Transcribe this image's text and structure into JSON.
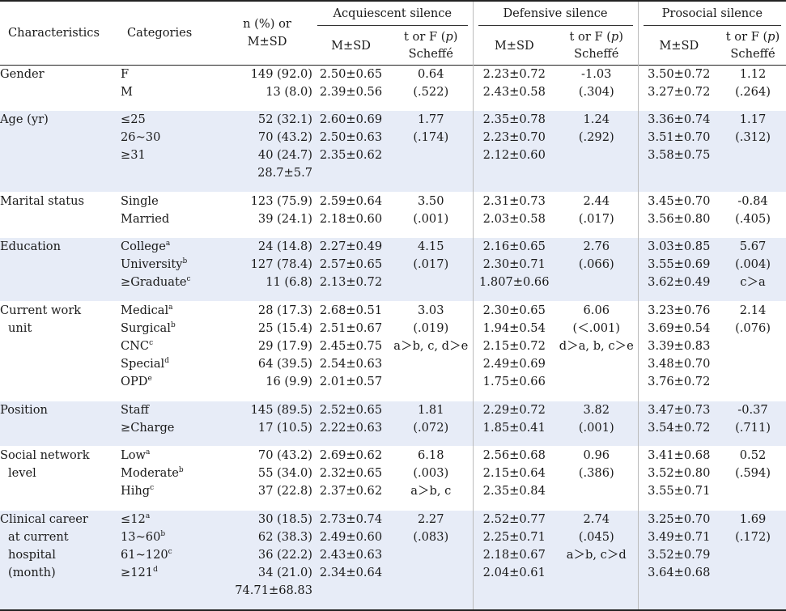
{
  "header": {
    "characteristics": "Characteristics",
    "categories": "Categories",
    "n_line1": "n (%) or",
    "n_line2": "M±SD",
    "groups": [
      "Acquiescent silence",
      "Defensive silence",
      "Prosocial silence"
    ],
    "msd": "M±SD",
    "stat_line1": "t or F (",
    "stat_p": "p",
    "stat_close": ")",
    "stat_line2": "Scheffé"
  },
  "rows": [
    {
      "characteristic": [
        "Gender"
      ],
      "categories": [
        {
          "text": "F"
        },
        {
          "text": "M"
        }
      ],
      "n": [
        "149 (92.0)",
        "13 (8.0)"
      ],
      "acq_msd": [
        "2.50±0.65",
        "2.39±0.56"
      ],
      "acq_stat": [
        "0.64",
        "(.522)"
      ],
      "def_msd": [
        "2.23±0.72",
        "2.43±0.58"
      ],
      "def_stat": [
        "-1.03",
        "(.304)"
      ],
      "pro_msd": [
        "3.50±0.72",
        "3.27±0.72"
      ],
      "pro_stat": [
        "1.12",
        "(.264)"
      ]
    },
    {
      "characteristic": [
        "Age (yr)"
      ],
      "categories": [
        {
          "text": "≤25"
        },
        {
          "text": "26~30"
        },
        {
          "text": "≥31"
        }
      ],
      "n": [
        "52 (32.1)",
        "70 (43.2)",
        "40 (24.7)",
        "28.7±5.7"
      ],
      "acq_msd": [
        "2.60±0.69",
        "2.50±0.63",
        "2.35±0.62"
      ],
      "acq_stat": [
        "1.77",
        "(.174)"
      ],
      "def_msd": [
        "2.35±0.78",
        "2.23±0.70",
        "2.12±0.60"
      ],
      "def_stat": [
        "1.24",
        "(.292)"
      ],
      "pro_msd": [
        "3.36±0.74",
        "3.51±0.70",
        "3.58±0.75"
      ],
      "pro_stat": [
        "1.17",
        "(.312)"
      ]
    },
    {
      "characteristic": [
        "Marital status"
      ],
      "categories": [
        {
          "text": "Single"
        },
        {
          "text": "Married"
        }
      ],
      "n": [
        "123 (75.9)",
        "39 (24.1)"
      ],
      "acq_msd": [
        "2.59±0.64",
        "2.18±0.60"
      ],
      "acq_stat": [
        "3.50",
        "(.001)"
      ],
      "def_msd": [
        "2.31±0.73",
        "2.03±0.58"
      ],
      "def_stat": [
        "2.44",
        "(.017)"
      ],
      "pro_msd": [
        "3.45±0.70",
        "3.56±0.80"
      ],
      "pro_stat": [
        "-0.84",
        "(.405)"
      ]
    },
    {
      "characteristic": [
        "Education"
      ],
      "categories": [
        {
          "text": "College",
          "sup": "a"
        },
        {
          "text": "University",
          "sup": "b"
        },
        {
          "text": "≥Graduate",
          "sup": "c"
        }
      ],
      "n": [
        "24 (14.8)",
        "127 (78.4)",
        "11 (6.8)"
      ],
      "acq_msd": [
        "2.27±0.49",
        "2.57±0.65",
        "2.13±0.72"
      ],
      "acq_stat": [
        "4.15",
        "(.017)"
      ],
      "def_msd": [
        "2.16±0.65",
        "2.30±0.71",
        "1.807±0.66"
      ],
      "def_stat": [
        "2.76",
        "(.066)"
      ],
      "pro_msd": [
        "3.03±0.85",
        "3.55±0.69",
        "3.62±0.49"
      ],
      "pro_stat": [
        "5.67",
        "(.004)",
        "c＞a"
      ]
    },
    {
      "characteristic": [
        "Current work",
        "unit"
      ],
      "categories": [
        {
          "text": "Medical",
          "sup": "a"
        },
        {
          "text": "Surgical",
          "sup": "b"
        },
        {
          "text": "CNC",
          "sup": "c"
        },
        {
          "text": "Special",
          "sup": "d"
        },
        {
          "text": "OPD",
          "sup": "e"
        }
      ],
      "n": [
        "28 (17.3)",
        "25 (15.4)",
        "29 (17.9)",
        "64 (39.5)",
        "16 (9.9)"
      ],
      "acq_msd": [
        "2.68±0.51",
        "2.51±0.67",
        "2.45±0.75",
        "2.54±0.63",
        "2.01±0.57"
      ],
      "acq_stat": [
        "3.03",
        "(.019)",
        "a＞b, c, d＞e"
      ],
      "def_msd": [
        "2.30±0.65",
        "1.94±0.54",
        "2.15±0.72",
        "2.49±0.69",
        "1.75±0.66"
      ],
      "def_stat": [
        "6.06",
        "(＜.001)",
        "d＞a, b, c＞e"
      ],
      "pro_msd": [
        "3.23±0.76",
        "3.69±0.54",
        "3.39±0.83",
        "3.48±0.70",
        "3.76±0.72"
      ],
      "pro_stat": [
        "2.14",
        "(.076)"
      ]
    },
    {
      "characteristic": [
        "Position"
      ],
      "categories": [
        {
          "text": "Staff"
        },
        {
          "text": "≥Charge"
        }
      ],
      "n": [
        "145 (89.5)",
        "17 (10.5)"
      ],
      "acq_msd": [
        "2.52±0.65",
        "2.22±0.63"
      ],
      "acq_stat": [
        "1.81",
        "(.072)"
      ],
      "def_msd": [
        "2.29±0.72",
        "1.85±0.41"
      ],
      "def_stat": [
        "3.82",
        "(.001)"
      ],
      "pro_msd": [
        "3.47±0.73",
        "3.54±0.72"
      ],
      "pro_stat": [
        "-0.37",
        "(.711)"
      ]
    },
    {
      "characteristic": [
        "Social network",
        "level"
      ],
      "categories": [
        {
          "text": "Low",
          "sup": "a"
        },
        {
          "text": "Moderate",
          "sup": "b"
        },
        {
          "text": "Hihg",
          "sup": "c"
        }
      ],
      "n": [
        "70 (43.2)",
        "55 (34.0)",
        "37 (22.8)"
      ],
      "acq_msd": [
        "2.69±0.62",
        "2.32±0.65",
        "2.37±0.62"
      ],
      "acq_stat": [
        "6.18",
        "(.003)",
        "a＞b, c"
      ],
      "def_msd": [
        "2.56±0.68",
        "2.15±0.64",
        "2.35±0.84"
      ],
      "def_stat": [
        "0.96",
        "(.386)"
      ],
      "pro_msd": [
        "3.41±0.68",
        "3.52±0.80",
        "3.55±0.71"
      ],
      "pro_stat": [
        "0.52",
        "(.594)"
      ]
    },
    {
      "characteristic": [
        "Clinical career",
        "at current",
        "hospital",
        "(month)"
      ],
      "categories": [
        {
          "text": "≤12",
          "sup": "a"
        },
        {
          "text": "13~60",
          "sup": "b"
        },
        {
          "text": "61~120",
          "sup": "c"
        },
        {
          "text": "≥121",
          "sup": "d"
        }
      ],
      "n": [
        "30 (18.5)",
        "62 (38.3)",
        "36 (22.2)",
        "34 (21.0)",
        "74.71±68.83"
      ],
      "acq_msd": [
        "2.73±0.74",
        "2.49±0.60",
        "2.43±0.63",
        "2.34±0.64"
      ],
      "acq_stat": [
        "2.27",
        "(.083)"
      ],
      "def_msd": [
        "2.52±0.77",
        "2.25±0.71",
        "2.18±0.67",
        "2.04±0.61"
      ],
      "def_stat": [
        "2.74",
        "(.045)",
        "a＞b, c＞d"
      ],
      "pro_msd": [
        "3.25±0.70",
        "3.49±0.71",
        "3.52±0.79",
        "3.64±0.68"
      ],
      "pro_stat": [
        "1.69",
        "(.172)"
      ]
    }
  ]
}
